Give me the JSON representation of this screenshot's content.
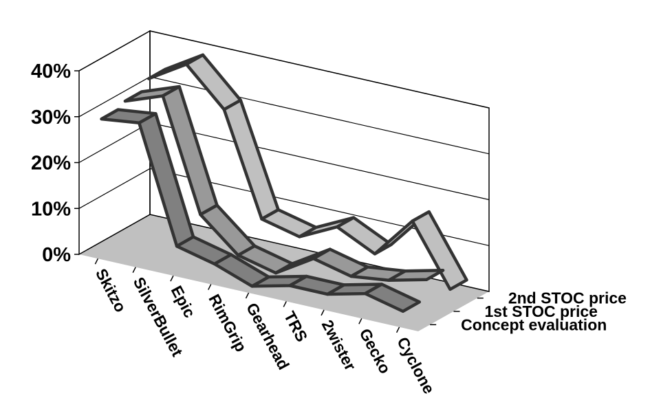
{
  "chart_data": {
    "type": "area",
    "subtype": "3d-ribbon",
    "title": "",
    "xlabel": "",
    "ylabel": "",
    "ylim": [
      0,
      40
    ],
    "yticks": [
      "0%",
      "10%",
      "20%",
      "30%",
      "40%"
    ],
    "grid": true,
    "legend": "none",
    "categories": [
      "Skitzo",
      "SilverBullet",
      "Epic",
      "RimGrip",
      "Gearhead",
      "TRS",
      "2wister",
      "Gecko",
      "Cyclone"
    ],
    "series": [
      {
        "name": "Concept evaluation",
        "color": "#808080",
        "values": [
          30,
          31,
          6,
          4,
          1,
          3,
          3,
          5,
          3
        ]
      },
      {
        "name": "1st STOC price",
        "color": "#999999",
        "values": [
          31,
          34,
          10,
          3,
          1,
          6,
          4,
          5,
          7
        ]
      },
      {
        "name": "2nd STOC price",
        "color": "#c0c0c0",
        "values": [
          33,
          38,
          30,
          8,
          6,
          10,
          6,
          15,
          2
        ]
      }
    ],
    "floor_color": "#c0c0c0"
  }
}
